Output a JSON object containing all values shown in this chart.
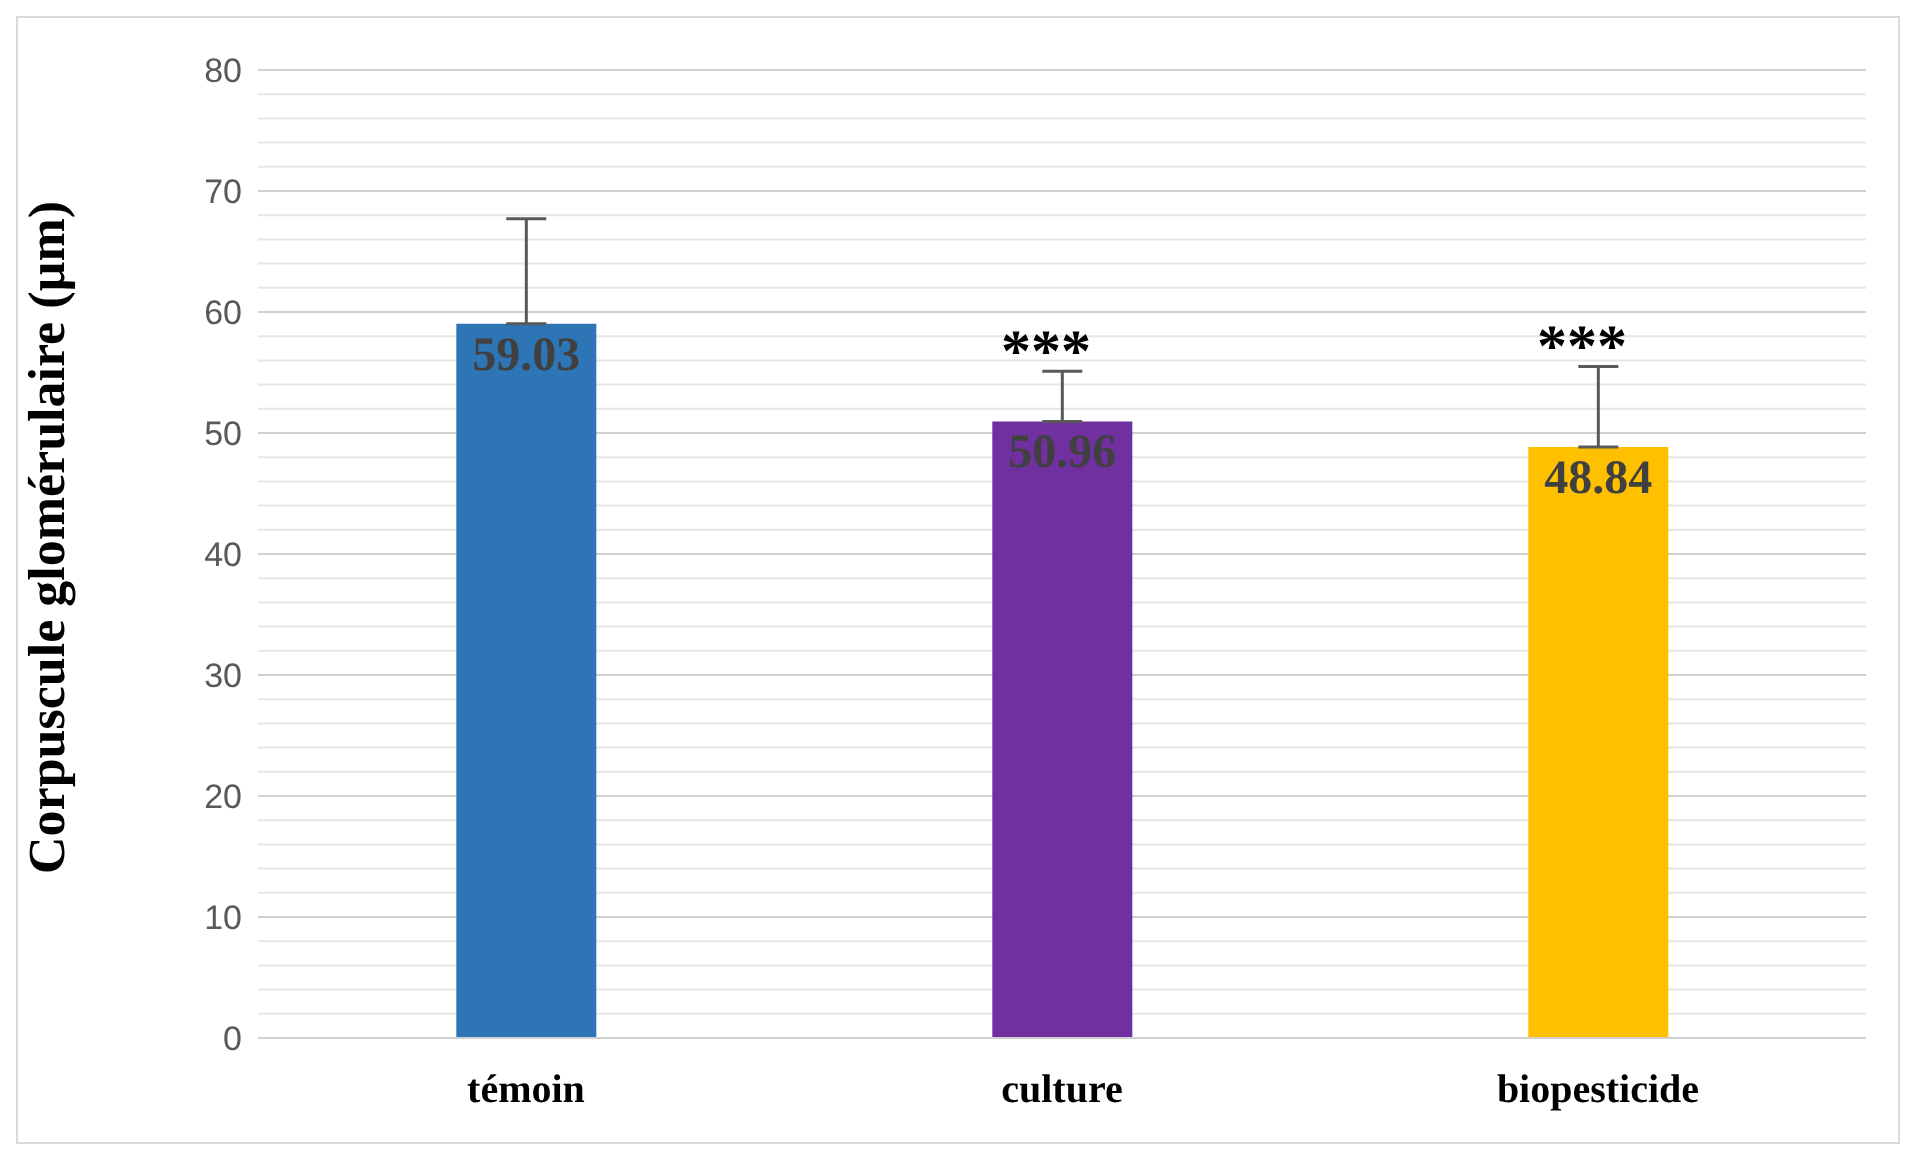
{
  "chart_data": {
    "type": "bar",
    "ylabel": "Corpuscule glomérulaire (µm)",
    "categories": [
      "témoin",
      "culture",
      "biopesticide"
    ],
    "values": [
      59.03,
      50.96,
      48.84
    ],
    "colors": [
      "#2e75b6",
      "#7030a0",
      "#ffc000"
    ],
    "errors": [
      [
        59.03,
        67.7
      ],
      [
        50.96,
        55.1
      ],
      [
        48.84,
        55.5
      ]
    ],
    "data_labels": true,
    "ylim": [
      0,
      80
    ],
    "yticks": [
      0,
      {
        "value": 2,
        "label": null
      },
      {
        "value": 4,
        "label": null
      },
      {
        "value": 6,
        "label": null
      },
      {
        "value": 8,
        "label": null
      },
      10,
      {
        "value": 12,
        "label": null
      },
      {
        "value": 14,
        "label": null
      },
      {
        "value": 16,
        "label": null
      },
      {
        "value": 18,
        "label": null
      },
      20,
      {
        "value": 22,
        "label": null
      },
      {
        "value": 24,
        "label": null
      },
      {
        "value": 26,
        "label": null
      },
      {
        "value": 28,
        "label": null
      },
      30,
      {
        "value": 32,
        "label": null
      },
      {
        "value": 34,
        "label": null
      },
      {
        "value": 36,
        "label": null
      },
      {
        "value": 38,
        "label": null
      },
      40,
      {
        "value": 42,
        "label": null
      },
      {
        "value": 44,
        "label": null
      },
      {
        "value": 46,
        "label": null
      },
      {
        "value": 48,
        "label": null
      },
      50,
      {
        "value": 52,
        "label": null
      },
      {
        "value": 54,
        "label": null
      },
      {
        "value": 56,
        "label": null
      },
      {
        "value": 58,
        "label": null
      },
      60,
      {
        "value": 62,
        "label": null
      },
      {
        "value": 64,
        "label": null
      },
      {
        "value": 66,
        "label": null
      },
      {
        "value": 68,
        "label": null
      },
      70,
      {
        "value": 72,
        "label": null
      },
      {
        "value": 74,
        "label": null
      },
      {
        "value": 76,
        "label": null
      },
      {
        "value": 78,
        "label": null
      },
      80
    ],
    "grid": "y",
    "annotations": [
      {
        "text": "***",
        "x": "culture",
        "y": 55.1
      },
      {
        "text": "***",
        "x": "biopesticide",
        "y": 55.5
      }
    ]
  }
}
